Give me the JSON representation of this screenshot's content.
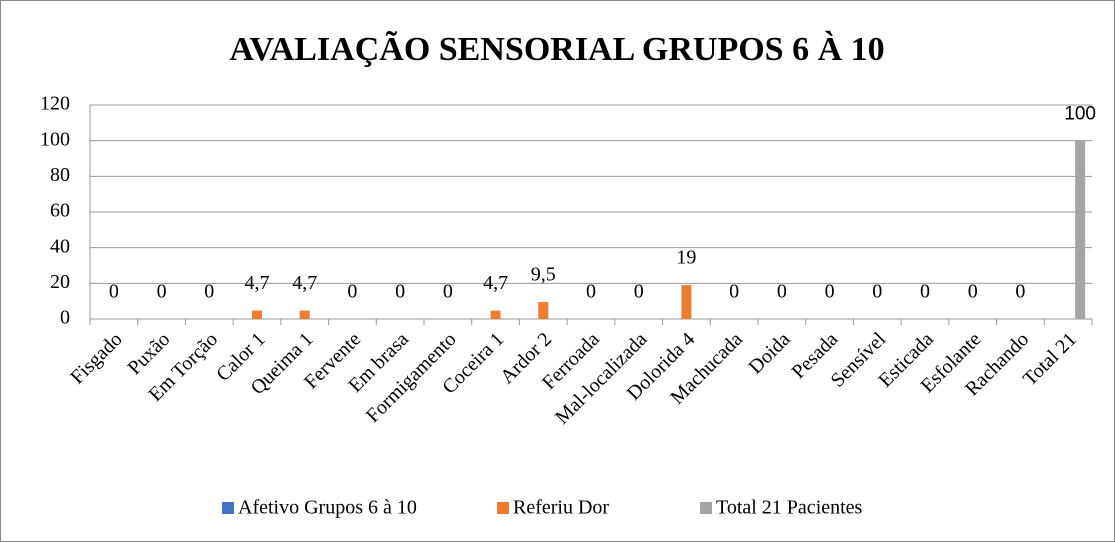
{
  "chart_data": {
    "type": "bar",
    "title": "AVALIAÇÃO SENSORIAL GRUPOS 6 À 10",
    "categories": [
      "Fisgado",
      "Puxão",
      "Em Torção",
      "Calor 1",
      "Queima 1",
      "Fervente",
      "Em brasa",
      "Formigamento",
      "Coceira 1",
      "Ardor 2",
      "Ferroada",
      "Mal-localizada",
      "Dolorida 4",
      "Machucada",
      "Doida",
      "Pesada",
      "Sensível",
      "Esticada",
      "Esfolante",
      "Rachando",
      "Total 21"
    ],
    "series": [
      {
        "name": "Afetivo Grupos 6 à 10",
        "color": "#4472c4",
        "values": [
          null,
          null,
          null,
          null,
          null,
          null,
          null,
          null,
          null,
          null,
          null,
          null,
          null,
          null,
          null,
          null,
          null,
          null,
          null,
          null,
          null
        ]
      },
      {
        "name": "Referiu Dor",
        "color": "#ed7d31",
        "values": [
          0,
          0,
          0,
          4.7,
          4.7,
          0,
          0,
          0,
          4.7,
          9.5,
          0,
          0,
          19,
          0,
          0,
          0,
          0,
          0,
          0,
          0,
          null
        ],
        "value_labels": [
          "0",
          "0",
          "0",
          "4,7",
          "4,7",
          "0",
          "0",
          "0",
          "4,7",
          "9,5",
          "0",
          "0",
          "19",
          "0",
          "0",
          "0",
          "0",
          "0",
          "0",
          "0",
          null
        ]
      },
      {
        "name": "Total 21 Pacientes",
        "color": "#a5a5a5",
        "values": [
          null,
          null,
          null,
          null,
          null,
          null,
          null,
          null,
          null,
          null,
          null,
          null,
          null,
          null,
          null,
          null,
          null,
          null,
          null,
          null,
          100
        ]
      }
    ],
    "ylim": [
      0,
      120
    ],
    "yticks": [
      0,
      20,
      40,
      60,
      80,
      100,
      120
    ],
    "grid": true,
    "legend": "bottom"
  }
}
